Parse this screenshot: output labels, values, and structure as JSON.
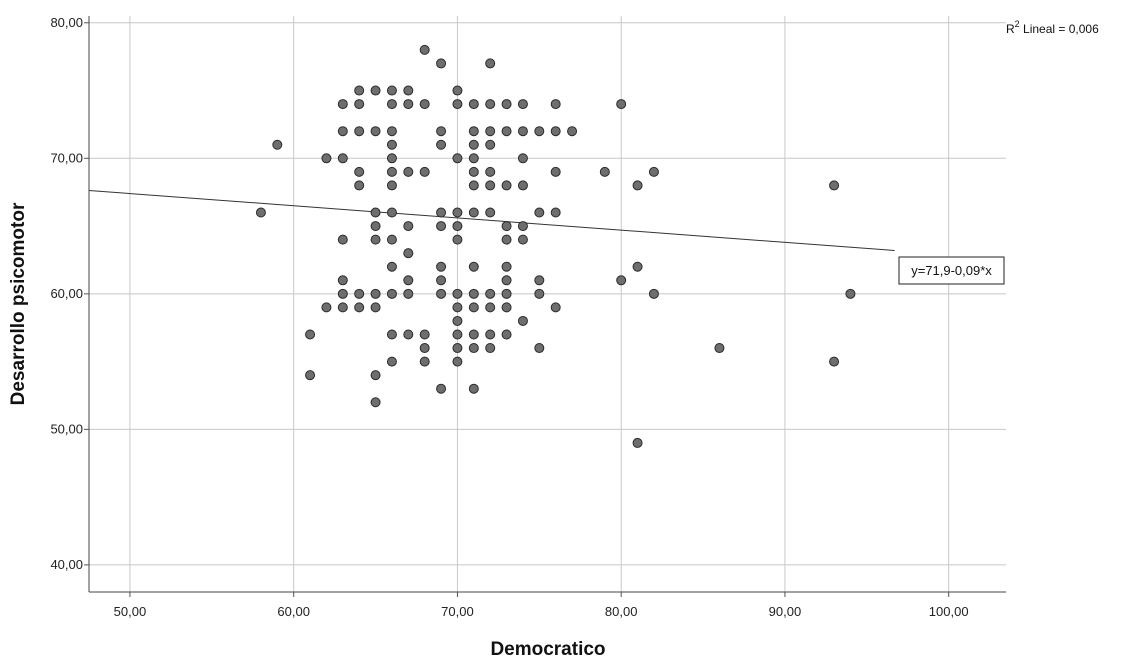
{
  "chart_data": {
    "type": "scatter",
    "title": "",
    "xlabel": "Democratico",
    "ylabel": "Desarrollo psicomotor",
    "xlim": [
      47.5,
      103.5
    ],
    "ylim": [
      38,
      80.5
    ],
    "x_ticks": [
      "50,00",
      "60,00",
      "70,00",
      "80,00",
      "90,00",
      "100,00"
    ],
    "y_ticks": [
      "40,00",
      "50,00",
      "60,00",
      "70,00",
      "80,00"
    ],
    "grid": true,
    "r2_prefix": "R",
    "r2_sup": "2",
    "r2_suffix": " Lineal = 0,006",
    "fit_line": {
      "intercept": 71.9,
      "slope": -0.09,
      "label": "y=71,9-0,09*x"
    },
    "point_color": "#6e6e6e",
    "points": [
      [
        58,
        66
      ],
      [
        59,
        71
      ],
      [
        61,
        57
      ],
      [
        61,
        54
      ],
      [
        62,
        70
      ],
      [
        62,
        59
      ],
      [
        63,
        74
      ],
      [
        63,
        72
      ],
      [
        63,
        70
      ],
      [
        63,
        64
      ],
      [
        63,
        61
      ],
      [
        63,
        60
      ],
      [
        63,
        59
      ],
      [
        64,
        75
      ],
      [
        64,
        74
      ],
      [
        64,
        72
      ],
      [
        64,
        69
      ],
      [
        64,
        68
      ],
      [
        64,
        60
      ],
      [
        64,
        59
      ],
      [
        65,
        75
      ],
      [
        65,
        72
      ],
      [
        65,
        66
      ],
      [
        65,
        65
      ],
      [
        65,
        64
      ],
      [
        65,
        60
      ],
      [
        65,
        59
      ],
      [
        65,
        54
      ],
      [
        65,
        52
      ],
      [
        66,
        75
      ],
      [
        66,
        74
      ],
      [
        66,
        72
      ],
      [
        66,
        71
      ],
      [
        66,
        70
      ],
      [
        66,
        69
      ],
      [
        66,
        68
      ],
      [
        66,
        66
      ],
      [
        66,
        64
      ],
      [
        66,
        62
      ],
      [
        66,
        60
      ],
      [
        66,
        57
      ],
      [
        66,
        55
      ],
      [
        67,
        75
      ],
      [
        67,
        74
      ],
      [
        67,
        69
      ],
      [
        67,
        65
      ],
      [
        67,
        63
      ],
      [
        67,
        61
      ],
      [
        67,
        60
      ],
      [
        67,
        57
      ],
      [
        68,
        78
      ],
      [
        68,
        74
      ],
      [
        68,
        69
      ],
      [
        68,
        57
      ],
      [
        68,
        56
      ],
      [
        68,
        55
      ],
      [
        69,
        77
      ],
      [
        69,
        72
      ],
      [
        69,
        71
      ],
      [
        69,
        66
      ],
      [
        69,
        65
      ],
      [
        69,
        62
      ],
      [
        69,
        61
      ],
      [
        69,
        60
      ],
      [
        69,
        53
      ],
      [
        70,
        75
      ],
      [
        70,
        74
      ],
      [
        70,
        70
      ],
      [
        70,
        66
      ],
      [
        70,
        65
      ],
      [
        70,
        64
      ],
      [
        70,
        60
      ],
      [
        70,
        59
      ],
      [
        70,
        58
      ],
      [
        70,
        57
      ],
      [
        70,
        56
      ],
      [
        70,
        55
      ],
      [
        71,
        74
      ],
      [
        71,
        72
      ],
      [
        71,
        71
      ],
      [
        71,
        70
      ],
      [
        71,
        69
      ],
      [
        71,
        68
      ],
      [
        71,
        66
      ],
      [
        71,
        62
      ],
      [
        71,
        60
      ],
      [
        71,
        59
      ],
      [
        71,
        57
      ],
      [
        71,
        56
      ],
      [
        71,
        53
      ],
      [
        72,
        77
      ],
      [
        72,
        74
      ],
      [
        72,
        72
      ],
      [
        72,
        71
      ],
      [
        72,
        69
      ],
      [
        72,
        68
      ],
      [
        72,
        66
      ],
      [
        72,
        60
      ],
      [
        72,
        59
      ],
      [
        72,
        57
      ],
      [
        72,
        56
      ],
      [
        73,
        74
      ],
      [
        73,
        72
      ],
      [
        73,
        68
      ],
      [
        73,
        65
      ],
      [
        73,
        64
      ],
      [
        73,
        62
      ],
      [
        73,
        61
      ],
      [
        73,
        60
      ],
      [
        73,
        59
      ],
      [
        73,
        57
      ],
      [
        74,
        74
      ],
      [
        74,
        72
      ],
      [
        74,
        70
      ],
      [
        74,
        68
      ],
      [
        74,
        65
      ],
      [
        74,
        64
      ],
      [
        74,
        58
      ],
      [
        75,
        72
      ],
      [
        75,
        66
      ],
      [
        75,
        61
      ],
      [
        75,
        60
      ],
      [
        75,
        56
      ],
      [
        76,
        74
      ],
      [
        76,
        72
      ],
      [
        76,
        69
      ],
      [
        76,
        66
      ],
      [
        76,
        59
      ],
      [
        77,
        72
      ],
      [
        79,
        69
      ],
      [
        80,
        74
      ],
      [
        80,
        61
      ],
      [
        81,
        68
      ],
      [
        81,
        62
      ],
      [
        81,
        49
      ],
      [
        82,
        69
      ],
      [
        82,
        60
      ],
      [
        86,
        56
      ],
      [
        93,
        68
      ],
      [
        93,
        55
      ],
      [
        94,
        60
      ]
    ]
  }
}
